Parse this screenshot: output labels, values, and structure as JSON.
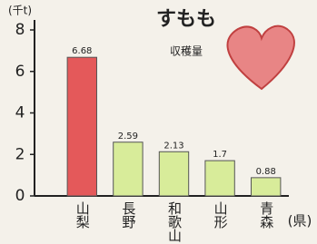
{
  "chart_data": {
    "type": "bar",
    "title": "すもも",
    "subtitle": "収穫量",
    "y_label": "(千t)",
    "x_label": "(県)",
    "categories": [
      "山梨",
      "長野",
      "和歌山",
      "山形",
      "青森"
    ],
    "values": [
      6.68,
      2.59,
      2.13,
      1.7,
      0.88
    ],
    "colors": [
      "#e4595a",
      "#d8ec9a",
      "#d8ec9a",
      "#d8ec9a",
      "#d8ec9a"
    ],
    "ylim": [
      0,
      8
    ],
    "yticks": [
      0,
      2,
      4,
      6,
      8
    ]
  }
}
